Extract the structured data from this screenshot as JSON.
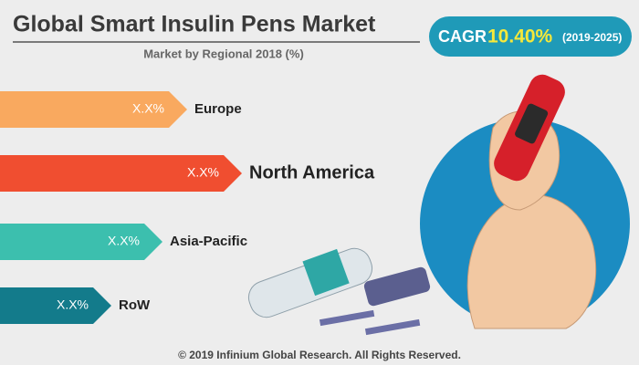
{
  "header": {
    "title": "Global Smart Insulin Pens Market",
    "subtitle": "Market by Regional 2018 (%)"
  },
  "cagr": {
    "label": "CAGR",
    "value": "10.40%",
    "period": "(2019-2025)"
  },
  "regions": [
    {
      "value_label": "X.X%",
      "label": "Europe"
    },
    {
      "value_label": "X.X%",
      "label": "North America"
    },
    {
      "value_label": "X.X%",
      "label": "Asia-Pacific"
    },
    {
      "value_label": "X.X%",
      "label": "RoW"
    }
  ],
  "footer": "© 2019 Infinium Global Research. All Rights Reserved."
}
